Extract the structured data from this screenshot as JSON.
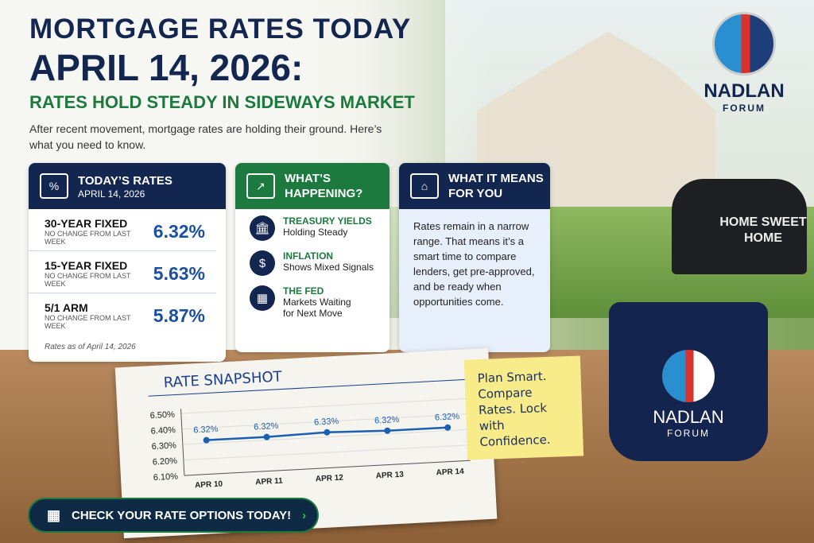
{
  "header": {
    "line1": "MORTGAGE RATES TODAY",
    "line2": "APRIL 14, 2026:",
    "line3": "RATES HOLD STEADY IN SIDEWAYS MARKET",
    "intro": "After recent movement, mortgage rates are holding their ground. Here’s what you need to know."
  },
  "logo": {
    "name": "NADLAN",
    "sub": "FORUM"
  },
  "rates": {
    "title": "TODAY’S RATES",
    "date": "APRIL 14, 2026",
    "items": [
      {
        "name": "30-YEAR FIXED",
        "change": "NO CHANGE FROM LAST WEEK",
        "value": "6.32%"
      },
      {
        "name": "15-YEAR FIXED",
        "change": "NO CHANGE FROM LAST WEEK",
        "value": "5.63%"
      },
      {
        "name": "5/1 ARM",
        "change": "NO CHANGE FROM LAST WEEK",
        "value": "5.87%"
      }
    ],
    "note": "Rates as of April 14, 2026"
  },
  "happening": {
    "title": "WHAT’S HAPPENING?",
    "items": [
      {
        "icon": "bank-icon",
        "title": "TREASURY YIELDS",
        "desc": "Holding Steady"
      },
      {
        "icon": "dollar-icon",
        "title": "INFLATION",
        "desc": "Shows Mixed Signals"
      },
      {
        "icon": "calendar-icon",
        "title": "THE FED",
        "desc": "Markets Waiting for Next Move"
      }
    ]
  },
  "means": {
    "title": "WHAT IT MEANS FOR YOU",
    "body": "Rates remain in a narrow range. That means it’s a smart time to compare lenders, get pre-approved, and be ready when opportunities come."
  },
  "sticky": "Plan Smart. Compare Rates. Lock with Confidence.",
  "mailbox": "HOME SWEET HOME",
  "mug": {
    "name": "NADLAN",
    "sub": "FORUM"
  },
  "cta": {
    "label": "CHECK YOUR RATE OPTIONS TODAY!"
  },
  "colors": {
    "navy": "#12264f",
    "green": "#1c7a3e",
    "blue": "#1b4fa0"
  },
  "chart_data": {
    "type": "line",
    "title": "RATE SNAPSHOT",
    "categories": [
      "APR 10",
      "APR 11",
      "APR 12",
      "APR 13",
      "APR 14"
    ],
    "values": [
      6.32,
      6.32,
      6.33,
      6.32,
      6.32
    ],
    "labels": [
      "6.32%",
      "6.32%",
      "6.33%",
      "6.32%",
      "6.32%"
    ],
    "yticks": [
      "6.50%",
      "6.40%",
      "6.30%",
      "6.20%",
      "6.10%"
    ],
    "ylim": [
      6.1,
      6.5
    ],
    "grid": true
  }
}
